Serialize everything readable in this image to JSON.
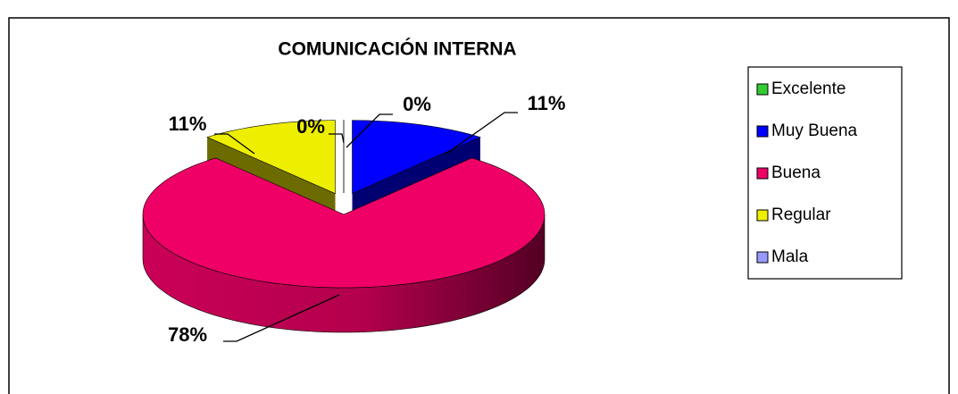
{
  "chart_data": {
    "type": "pie",
    "title": "COMUNICACIÓN  INTERNA",
    "categories": [
      "Excelente",
      "Muy Buena",
      "Buena",
      "Regular",
      "Mala"
    ],
    "values": [
      0,
      11,
      78,
      11,
      0
    ],
    "value_labels": [
      "0%",
      "11%",
      "78%",
      "11%",
      "0%"
    ],
    "colors": [
      "#33cc33",
      "#0000ff",
      "#ee0066",
      "#eeee00",
      "#9999ff"
    ],
    "legend": "right"
  }
}
